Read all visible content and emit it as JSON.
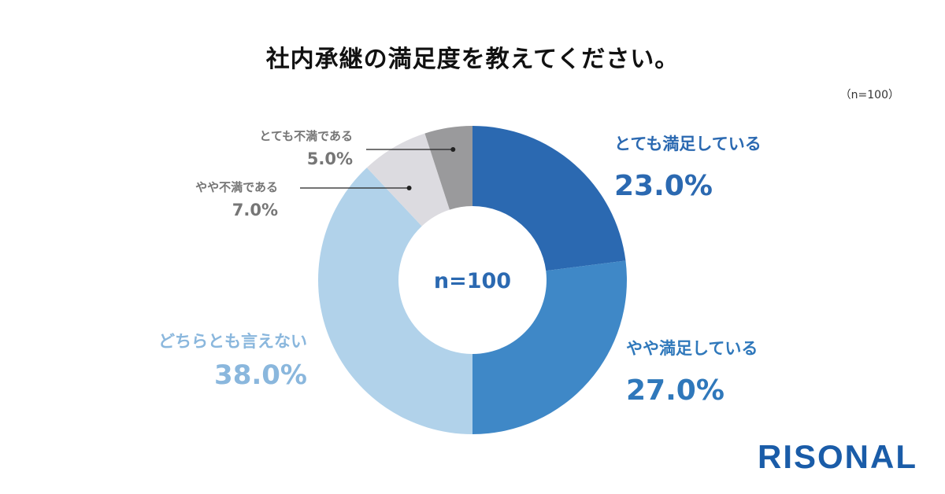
{
  "title": "社内承継の満足度を教えてください。",
  "sample_note": "（n=100）",
  "logo": {
    "text": "RISONAL",
    "color": "#1a5ca8"
  },
  "chart_data": {
    "type": "pie",
    "donut": true,
    "center_label": "n=100",
    "categories": [
      "とても満足している",
      "やや満足している",
      "どちらとも言えない",
      "やや不満である",
      "とても不満である"
    ],
    "values": [
      23.0,
      27.0,
      38.0,
      7.0,
      5.0
    ],
    "value_labels": [
      "23.0%",
      "27.0%",
      "38.0%",
      "7.0%",
      "5.0%"
    ],
    "colors": [
      "#2b69b1",
      "#3f88c7",
      "#b1d2ea",
      "#dcdbe0",
      "#9a9a9c"
    ],
    "label_colors": [
      "#2b69b1",
      "#2f78bb",
      "#8ab7dd",
      "#767676",
      "#767676"
    ],
    "start": "12 o'clock",
    "direction": "clockwise"
  }
}
